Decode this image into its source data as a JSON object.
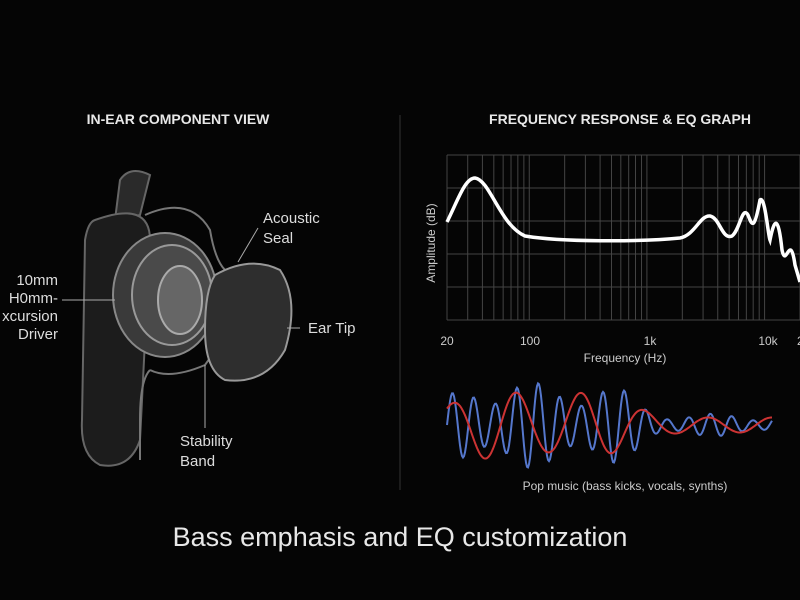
{
  "left_panel": {
    "title": "IN-EAR COMPONENT VIEW",
    "labels": {
      "seal": [
        "Acoustic",
        "Seal"
      ],
      "driver": [
        "10mm",
        "H0mm-",
        "xcursion",
        "Driver"
      ],
      "tip": [
        "Ear Tip"
      ],
      "band": [
        "Stability",
        "Band"
      ]
    }
  },
  "right_panel": {
    "title": "FREQUENCY RESPONSE & EQ GRAPH",
    "y_axis_label": "Amplitude (dB)",
    "x_axis_label": "Frequency (Hz)",
    "x_tick_labels": [
      "20",
      "100",
      "1k",
      "10k",
      "2"
    ],
    "caption": "Pop music (bass kicks, vocals, synths)"
  },
  "footer": "Bass emphasis and EQ customization"
}
